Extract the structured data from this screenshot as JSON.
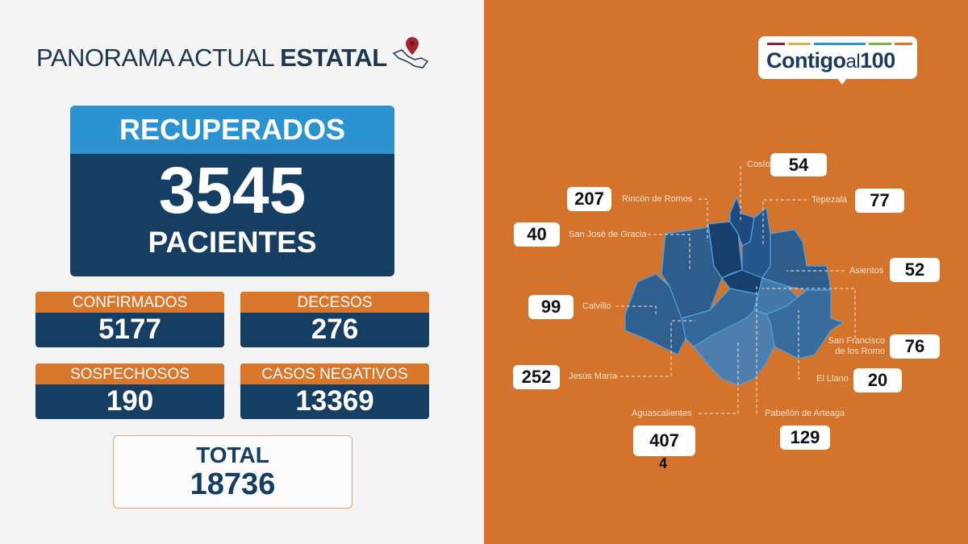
{
  "header": {
    "title_light": "PANORAMA ACTUAL",
    "title_bold": "ESTATAL",
    "icon": "mexico-map-pin-icon"
  },
  "recuperados": {
    "label": "RECUPERADOS",
    "value": "3545",
    "unit": "PACIENTES"
  },
  "stats": [
    {
      "label": "CONFIRMADOS",
      "value": "5177"
    },
    {
      "label": "DECESOS",
      "value": "276"
    },
    {
      "label": "SOSPECHOSOS",
      "value": "190"
    },
    {
      "label": "CASOS NEGATIVOS",
      "value": "13369"
    }
  ],
  "total": {
    "label": "TOTAL",
    "value": "18736"
  },
  "logo": {
    "text_bold": "Contigo",
    "text_light": "al",
    "text_num": "100"
  },
  "municipalities": [
    {
      "name": "Cosío",
      "value": "54"
    },
    {
      "name": "Rincón de Romos",
      "value": "207"
    },
    {
      "name": "Tepezalá",
      "value": "77"
    },
    {
      "name": "San José de Gracia",
      "value": "40"
    },
    {
      "name": "Asientos",
      "value": "52"
    },
    {
      "name": "Calvillo",
      "value": "99"
    },
    {
      "name": "San Francisco de los Romo",
      "value": "76"
    },
    {
      "name": "Jesús María",
      "value": "252"
    },
    {
      "name": "El Llano",
      "value": "20"
    },
    {
      "name": "Aguascalientes",
      "value": "407",
      "value_overflow": "4"
    },
    {
      "name": "Pabellón de Arteaga",
      "value": "129"
    }
  ],
  "colors": {
    "orange": "#d4732b",
    "navy": "#163d62",
    "light_blue": "#2b93cf"
  }
}
